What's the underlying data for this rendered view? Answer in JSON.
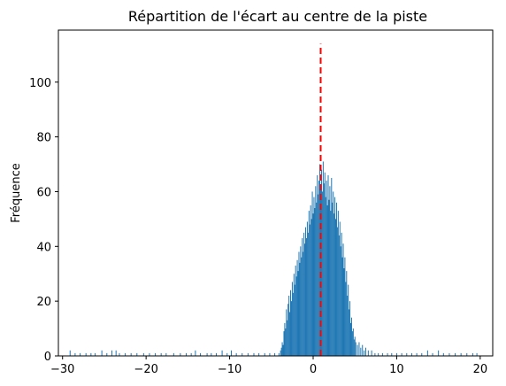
{
  "chart_data": {
    "type": "bar",
    "title": "Répartition de l'écart au centre de la piste",
    "xlabel": "",
    "ylabel": "Fréquence",
    "xlim": [
      -30.5,
      21.5
    ],
    "ylim": [
      0,
      119
    ],
    "xticks": [
      -30,
      -20,
      -10,
      0,
      10,
      20
    ],
    "yticks": [
      0,
      20,
      40,
      60,
      80,
      100
    ],
    "grid": false,
    "bar_color": "#1f77b4",
    "reference_line": {
      "x": 0.9,
      "y_top": 114,
      "color": "#ff0000",
      "style": "dashed"
    },
    "bin_width": 0.1,
    "histogram_bins": [
      [
        -29.1,
        2
      ],
      [
        -28.5,
        1
      ],
      [
        -27.9,
        1
      ],
      [
        -27.2,
        1
      ],
      [
        -26.6,
        1
      ],
      [
        -26.1,
        1
      ],
      [
        -25.3,
        2
      ],
      [
        -24.7,
        1
      ],
      [
        -24.1,
        2
      ],
      [
        -23.6,
        2
      ],
      [
        -23.2,
        1
      ],
      [
        -22.5,
        1
      ],
      [
        -21.8,
        1
      ],
      [
        -21.1,
        1
      ],
      [
        -20.3,
        1
      ],
      [
        -19.6,
        1
      ],
      [
        -18.9,
        1
      ],
      [
        -18.2,
        1
      ],
      [
        -17.6,
        1
      ],
      [
        -16.7,
        1
      ],
      [
        -15.9,
        1
      ],
      [
        -15.2,
        1
      ],
      [
        -14.6,
        1
      ],
      [
        -14.1,
        2
      ],
      [
        -13.5,
        1
      ],
      [
        -12.7,
        1
      ],
      [
        -12.2,
        1
      ],
      [
        -11.6,
        1
      ],
      [
        -10.9,
        2
      ],
      [
        -10.3,
        1
      ],
      [
        -9.8,
        2
      ],
      [
        -9.2,
        1
      ],
      [
        -8.5,
        1
      ],
      [
        -7.8,
        1
      ],
      [
        -7.1,
        1
      ],
      [
        -6.5,
        1
      ],
      [
        -5.8,
        1
      ],
      [
        -5.2,
        1
      ],
      [
        -4.6,
        1
      ],
      [
        -4.1,
        1
      ],
      [
        -3.9,
        2
      ],
      [
        -3.8,
        3
      ],
      [
        -3.7,
        5
      ],
      [
        -3.6,
        4
      ],
      [
        -3.5,
        9
      ],
      [
        -3.4,
        12
      ],
      [
        -3.3,
        10
      ],
      [
        -3.2,
        17
      ],
      [
        -3.1,
        13
      ],
      [
        -3.0,
        19
      ],
      [
        -2.9,
        22
      ],
      [
        -2.8,
        16
      ],
      [
        -2.7,
        24
      ],
      [
        -2.6,
        20
      ],
      [
        -2.5,
        27
      ],
      [
        -2.4,
        23
      ],
      [
        -2.3,
        30
      ],
      [
        -2.2,
        26
      ],
      [
        -2.1,
        33
      ],
      [
        -2.0,
        29
      ],
      [
        -1.9,
        35
      ],
      [
        -1.8,
        31
      ],
      [
        -1.7,
        38
      ],
      [
        -1.6,
        34
      ],
      [
        -1.5,
        40
      ],
      [
        -1.4,
        36
      ],
      [
        -1.3,
        43
      ],
      [
        -1.2,
        38
      ],
      [
        -1.1,
        45
      ],
      [
        -1.0,
        41
      ],
      [
        -0.9,
        47
      ],
      [
        -0.8,
        43
      ],
      [
        -0.7,
        49
      ],
      [
        -0.6,
        45
      ],
      [
        -0.5,
        53
      ],
      [
        -0.4,
        48
      ],
      [
        -0.3,
        55
      ],
      [
        -0.2,
        50
      ],
      [
        -0.1,
        60
      ],
      [
        0.0,
        52
      ],
      [
        0.1,
        58
      ],
      [
        0.2,
        54
      ],
      [
        0.3,
        62
      ],
      [
        0.4,
        56
      ],
      [
        0.5,
        66
      ],
      [
        0.6,
        59
      ],
      [
        0.7,
        64
      ],
      [
        0.8,
        70
      ],
      [
        0.9,
        61
      ],
      [
        1.0,
        68
      ],
      [
        1.1,
        60
      ],
      [
        1.2,
        71
      ],
      [
        1.3,
        63
      ],
      [
        1.4,
        67
      ],
      [
        1.5,
        58
      ],
      [
        1.6,
        64
      ],
      [
        1.7,
        55
      ],
      [
        1.8,
        66
      ],
      [
        1.9,
        57
      ],
      [
        2.0,
        62
      ],
      [
        2.1,
        53
      ],
      [
        2.2,
        65
      ],
      [
        2.3,
        56
      ],
      [
        2.4,
        60
      ],
      [
        2.5,
        52
      ],
      [
        2.6,
        58
      ],
      [
        2.7,
        50
      ],
      [
        2.8,
        56
      ],
      [
        2.9,
        47
      ],
      [
        3.0,
        53
      ],
      [
        3.1,
        44
      ],
      [
        3.2,
        49
      ],
      [
        3.3,
        40
      ],
      [
        3.4,
        45
      ],
      [
        3.5,
        36
      ],
      [
        3.6,
        41
      ],
      [
        3.7,
        32
      ],
      [
        3.8,
        36
      ],
      [
        3.9,
        27
      ],
      [
        4.0,
        31
      ],
      [
        4.1,
        22
      ],
      [
        4.2,
        26
      ],
      [
        4.3,
        17
      ],
      [
        4.4,
        20
      ],
      [
        4.5,
        12
      ],
      [
        4.6,
        14
      ],
      [
        4.7,
        9
      ],
      [
        4.8,
        10
      ],
      [
        4.9,
        6
      ],
      [
        5.0,
        7
      ],
      [
        5.1,
        5
      ],
      [
        5.3,
        4
      ],
      [
        5.5,
        5
      ],
      [
        5.7,
        3
      ],
      [
        5.9,
        4
      ],
      [
        6.1,
        2
      ],
      [
        6.3,
        3
      ],
      [
        6.6,
        2
      ],
      [
        7.0,
        2
      ],
      [
        7.4,
        1
      ],
      [
        7.8,
        1
      ],
      [
        8.3,
        1
      ],
      [
        8.9,
        1
      ],
      [
        9.4,
        1
      ],
      [
        10.0,
        1
      ],
      [
        10.6,
        1
      ],
      [
        11.2,
        1
      ],
      [
        11.8,
        1
      ],
      [
        12.4,
        1
      ],
      [
        13.0,
        1
      ],
      [
        13.7,
        2
      ],
      [
        14.3,
        1
      ],
      [
        15.0,
        2
      ],
      [
        15.6,
        1
      ],
      [
        16.3,
        1
      ],
      [
        17.0,
        1
      ],
      [
        17.7,
        1
      ],
      [
        18.4,
        1
      ],
      [
        19.1,
        1
      ],
      [
        19.6,
        1
      ]
    ]
  }
}
